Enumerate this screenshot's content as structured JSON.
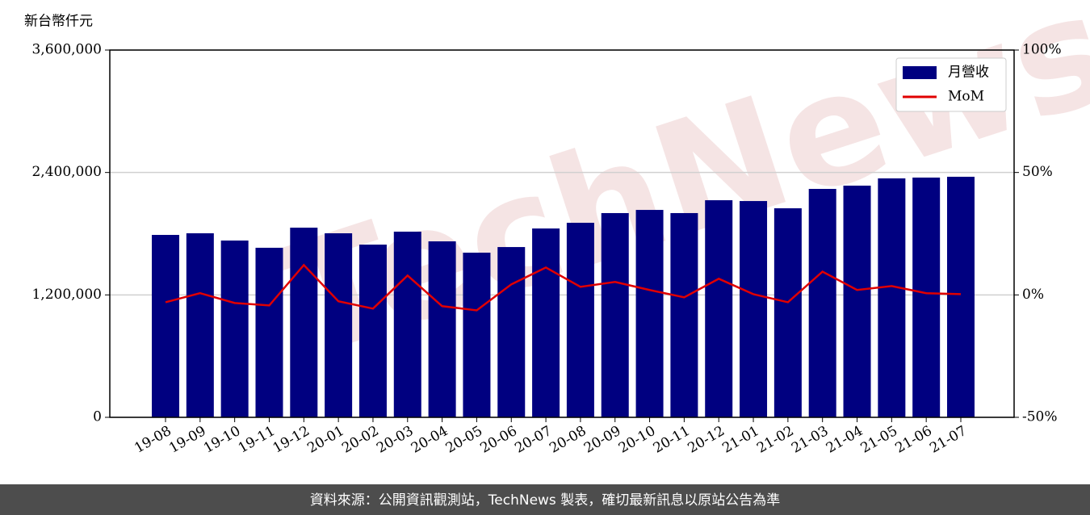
{
  "chart_data": {
    "type": "bar-line",
    "y_label": "新台幣仟元",
    "watermark": "TechNews",
    "source_note": "資料來源：公開資訊觀測站，TechNews 製表，確切最新訊息以原站公告為準",
    "categories": [
      "19-08",
      "19-09",
      "19-10",
      "19-11",
      "19-12",
      "20-01",
      "20-02",
      "20-03",
      "20-04",
      "20-05",
      "20-06",
      "20-07",
      "20-08",
      "20-09",
      "20-10",
      "20-11",
      "20-12",
      "21-01",
      "21-02",
      "21-03",
      "21-04",
      "21-05",
      "21-06",
      "21-07"
    ],
    "series": [
      {
        "name": "月營收",
        "type": "bar",
        "color": "#000080",
        "values": [
          1788000,
          1804000,
          1733000,
          1662000,
          1859000,
          1804000,
          1693000,
          1820000,
          1725000,
          1614000,
          1669000,
          1851000,
          1907000,
          2002000,
          2033000,
          2002000,
          2128000,
          2120000,
          2049000,
          2239000,
          2271000,
          2342000,
          2350000,
          2358000
        ]
      },
      {
        "name": "MoM",
        "type": "line",
        "axis": "y2",
        "color": "#e00000",
        "values": [
          -3.0,
          0.7,
          -3.3,
          -4.3,
          12.2,
          -2.6,
          -5.6,
          7.9,
          -4.6,
          -6.3,
          4.3,
          11.2,
          3.3,
          5.3,
          2.0,
          -1.0,
          6.6,
          0.3,
          -3.0,
          9.5,
          2.0,
          3.6,
          0.7,
          0.3
        ]
      }
    ],
    "ylim": [
      0,
      3600000
    ],
    "yticks": [
      0,
      {
        "value": 1200000,
        "label": "1,200,000"
      },
      {
        "value": 2400000,
        "label": "2,400,000"
      },
      {
        "value": 3600000,
        "label": "3,600,000"
      }
    ],
    "y2lim": [
      -50,
      100
    ],
    "y2ticks": [
      {
        "value": -50,
        "label": "-50%"
      },
      {
        "value": 0,
        "label": "0%"
      },
      {
        "value": 50,
        "label": "50%"
      },
      {
        "value": 100,
        "label": "100%"
      }
    ],
    "grid": true,
    "legend": "upper right"
  }
}
